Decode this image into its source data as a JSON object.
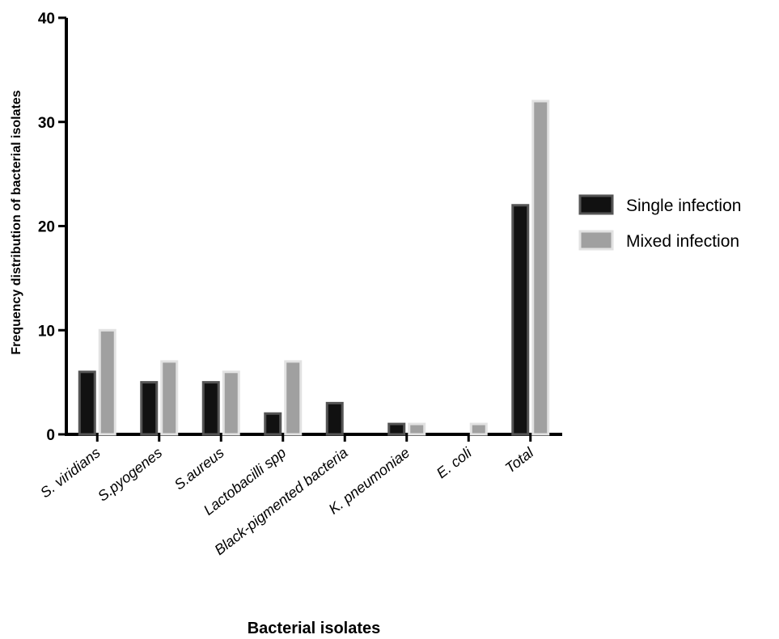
{
  "chart_data": {
    "type": "bar",
    "title": "",
    "xlabel": "Bacterial isolates",
    "ylabel": "Frequency distribution of bacterial isolates",
    "ylim": [
      0,
      40
    ],
    "yticks": [
      0,
      10,
      20,
      30,
      40
    ],
    "categories": [
      "S. viridians",
      "S.pyogenes",
      "S.aureus",
      "Lactobacilli spp",
      "Black-pigmented bacteria",
      "K. pneumoniae",
      "E. coli",
      "Total"
    ],
    "series": [
      {
        "name": "Single infection",
        "color": "#111111",
        "values": [
          6,
          5,
          5,
          2,
          3,
          1,
          0,
          22
        ]
      },
      {
        "name": "Mixed infection",
        "color": "#a0a0a0",
        "values": [
          10,
          7,
          6,
          7,
          0,
          1,
          1,
          32
        ]
      }
    ],
    "legend_position": "right",
    "grid": false
  }
}
